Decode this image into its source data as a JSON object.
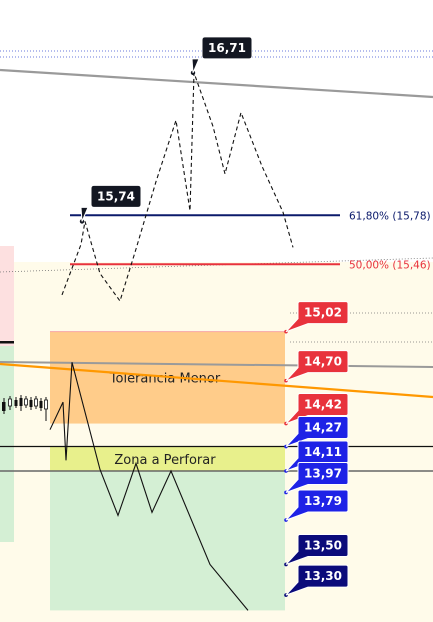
{
  "chart_data": {
    "type": "line",
    "title": "",
    "xlabel": "",
    "ylabel": "",
    "ylim": [
      13.17,
      16.97
    ],
    "grid": false,
    "zones": [
      {
        "label": "Tolerancia Menor",
        "from": 14.42,
        "to": 15.02,
        "color": "#ffcc8a"
      },
      {
        "label": "Zona a Perforar",
        "from": 14.11,
        "to": 14.27,
        "color": "#e8f08c"
      },
      {
        "label": "",
        "from": 13.2,
        "to": 14.11,
        "color": "#d4efd4"
      }
    ],
    "fib_levels": [
      {
        "label": "61,80% (15,78)",
        "value": 15.78,
        "color": "#0b1a6b"
      },
      {
        "label": "50,00% (15,46)",
        "value": 15.46,
        "color": "#e8323c"
      }
    ],
    "point_labels": [
      {
        "text": "16,71",
        "value": 16.71
      },
      {
        "text": "15,74",
        "value": 15.74
      }
    ],
    "price_tags": [
      {
        "text": "15,02",
        "value": 15.02,
        "color": "#e8323c"
      },
      {
        "text": "14,70",
        "value": 14.7,
        "color": "#e8323c"
      },
      {
        "text": "14,42",
        "value": 14.42,
        "color": "#e8323c"
      },
      {
        "text": "14,27",
        "value": 14.27,
        "color": "#1e22e6"
      },
      {
        "text": "14,11",
        "value": 14.11,
        "color": "#1e22e6"
      },
      {
        "text": "13,97",
        "value": 13.97,
        "color": "#1e22e6"
      },
      {
        "text": "13,79",
        "value": 13.79,
        "color": "#1e22e6"
      },
      {
        "text": "13,50",
        "value": 13.5,
        "color": "#0b0b7a"
      },
      {
        "text": "13,30",
        "value": 13.3,
        "color": "#0b0b7a"
      }
    ],
    "series": [
      {
        "style": "dashed",
        "values": [
          15.26,
          15.59,
          15.74,
          15.4,
          15.22,
          15.56,
          16.0,
          16.4,
          15.81,
          16.71,
          16.36,
          16.05,
          16.45,
          16.1,
          15.8,
          15.57
        ]
      },
      {
        "style": "solid",
        "values": [
          14.38,
          14.56,
          14.18,
          14.82,
          14.12,
          13.82,
          14.16,
          13.84,
          14.11,
          13.5,
          13.2
        ]
      }
    ],
    "colors": {
      "orange_trend": "#ff9800",
      "gray_trend": "#9a9a9a",
      "dark_label": "#131722"
    }
  }
}
